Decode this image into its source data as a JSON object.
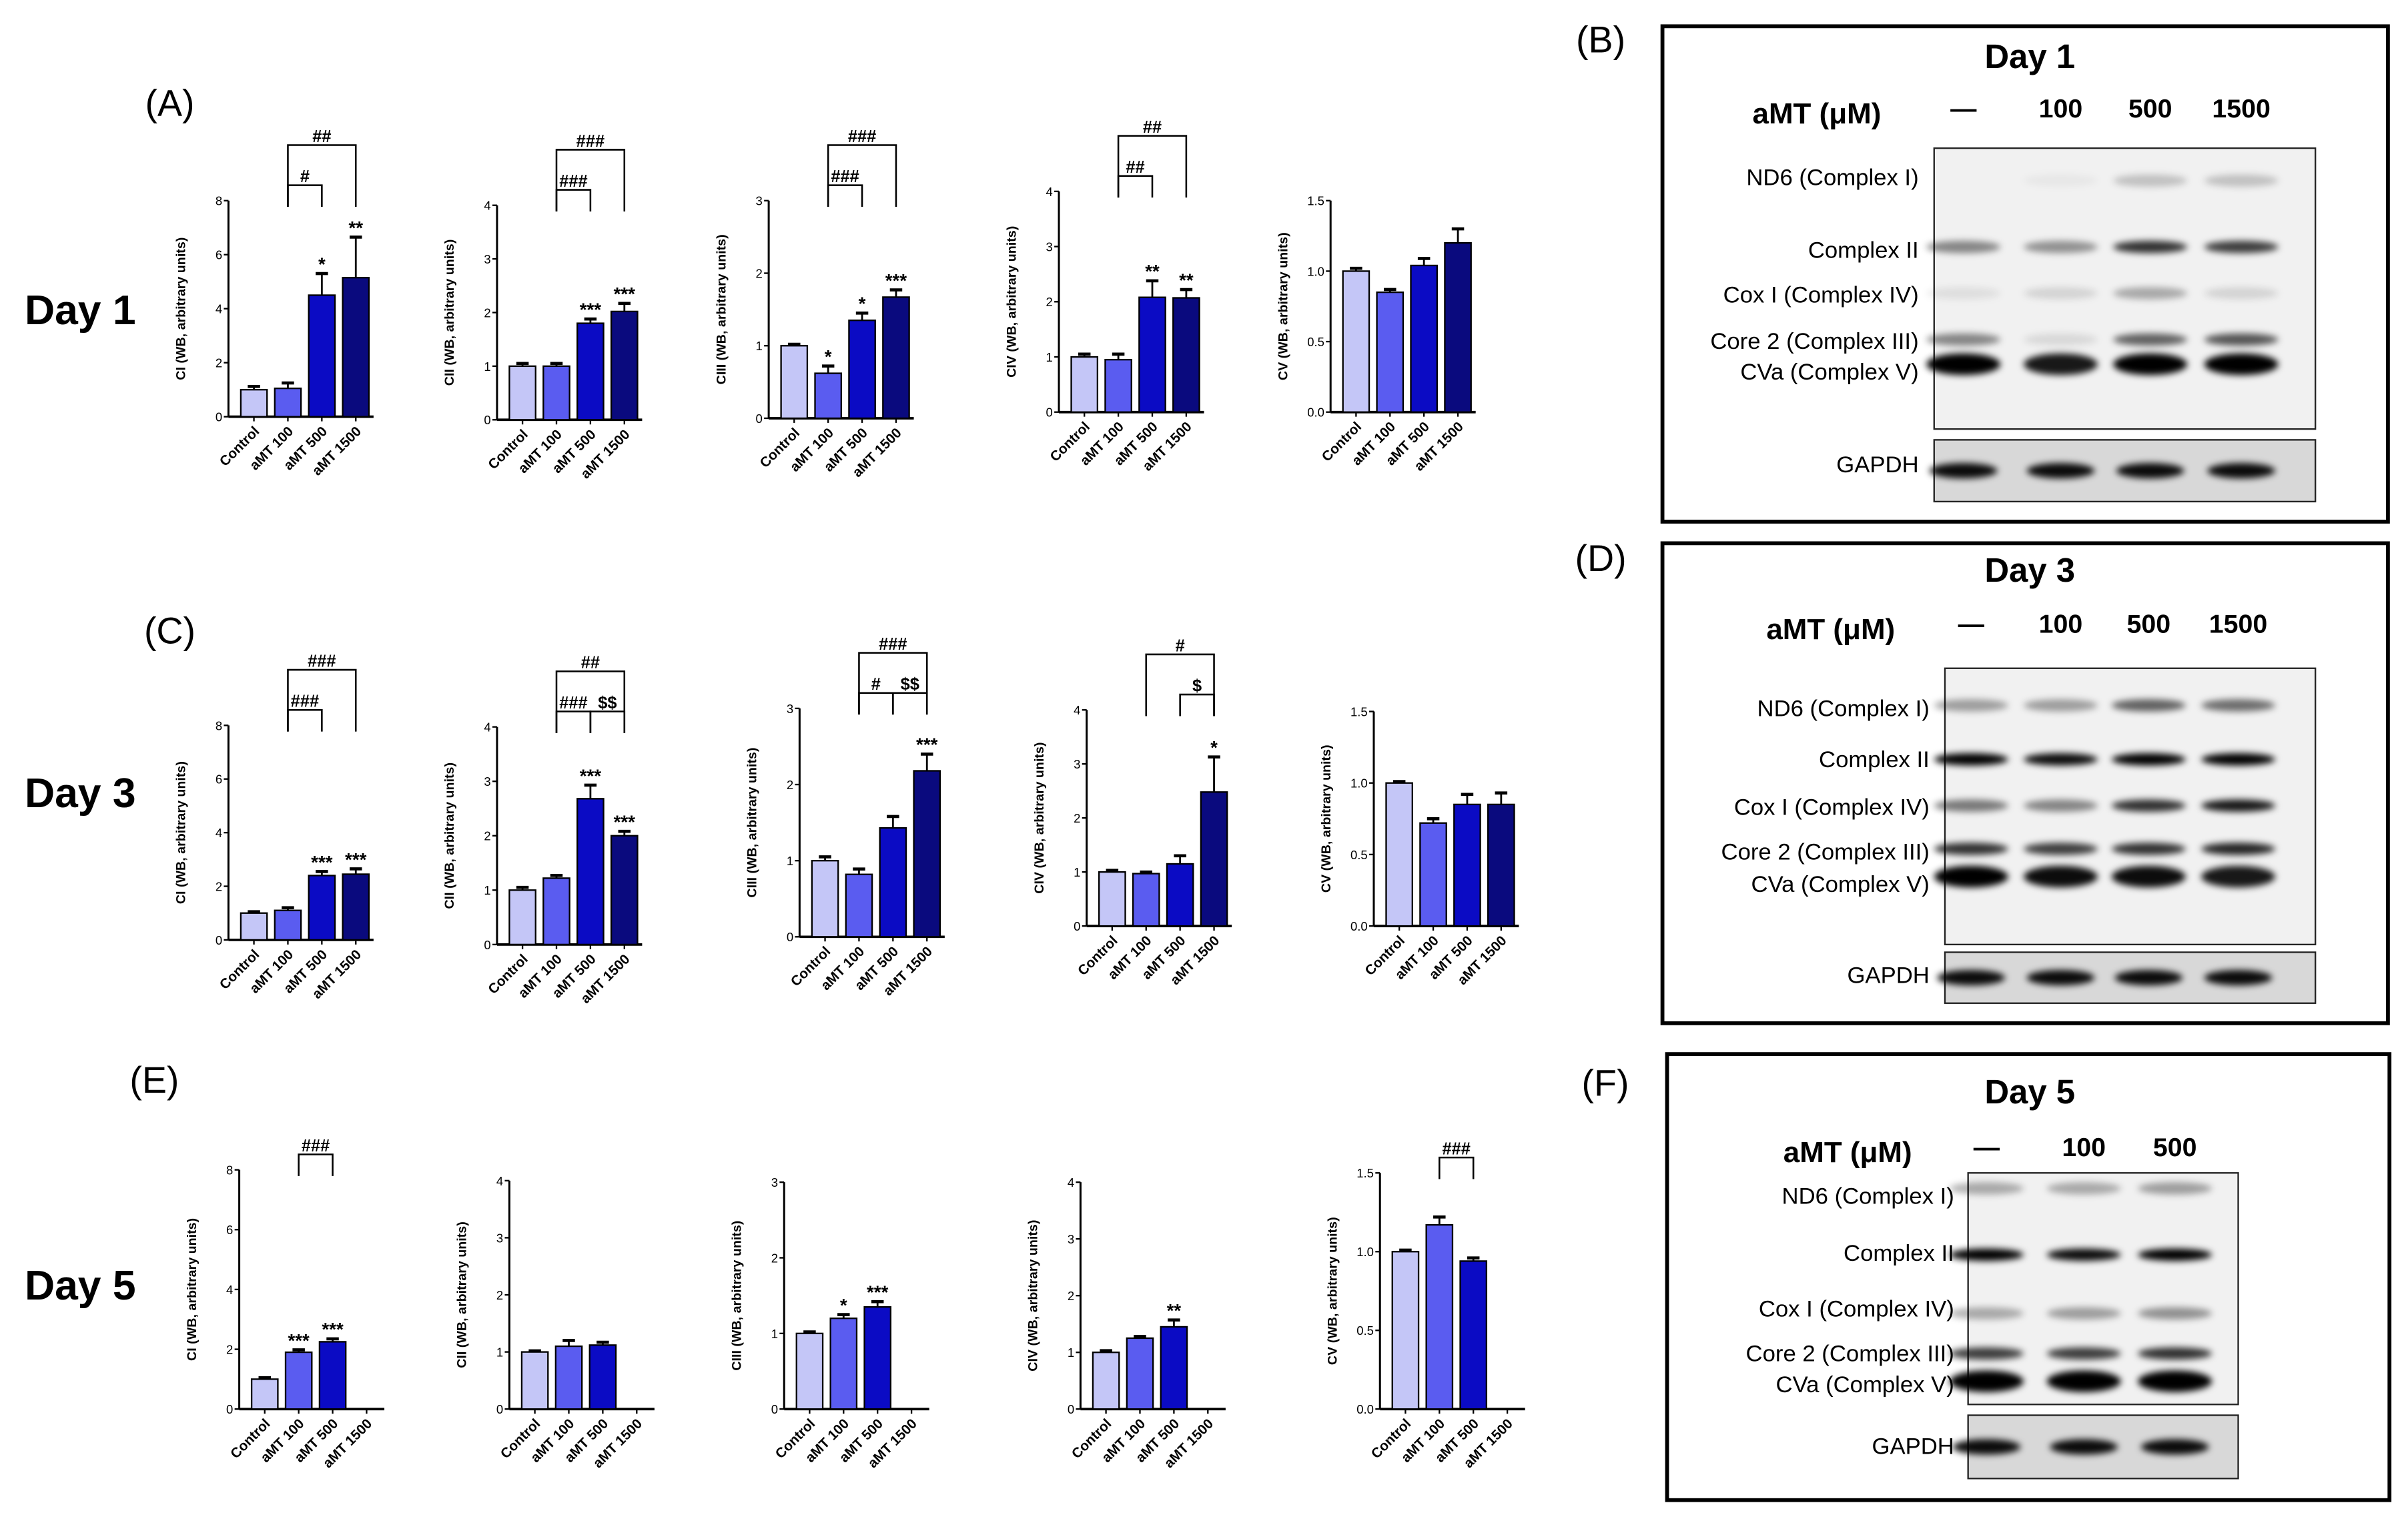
{
  "colors": {
    "control": "#c4c6f7",
    "aMT100": "#5a5cf0",
    "aMT500": "#0b0bc4",
    "aMT1500": "#0a0a7e",
    "axis": "#000000"
  },
  "panel_letters": [
    "(A)",
    "(B)",
    "(C)",
    "(D)",
    "(E)",
    "(F)"
  ],
  "row_labels": [
    "Day 1",
    "Day 3",
    "Day 5"
  ],
  "chart_data": [
    {
      "type": "bar",
      "row": "Day 1",
      "panel": "(A)",
      "ylabel": "CI (WB, arbitrary units)",
      "ylim": [
        0,
        8
      ],
      "yticks": [
        "0",
        "2",
        "4",
        "6",
        "8"
      ],
      "categories": [
        "Control",
        "aMT 100",
        "aMT 500",
        "aMT 1500"
      ],
      "values": [
        1.0,
        1.05,
        4.5,
        5.15
      ],
      "errors": [
        0.12,
        0.2,
        0.8,
        1.5
      ],
      "significance": [
        "",
        "",
        "*",
        "**"
      ],
      "brackets": [
        {
          "from": 1,
          "to": 2,
          "label": "#"
        },
        {
          "from": 1,
          "to": 3,
          "label": "##"
        }
      ]
    },
    {
      "type": "bar",
      "row": "Day 1",
      "panel": "(A)",
      "ylabel": "CII (WB, arbitrary units)",
      "ylim": [
        0,
        4
      ],
      "yticks": [
        "0",
        "1",
        "2",
        "3",
        "4"
      ],
      "categories": [
        "Control",
        "aMT 100",
        "aMT 500",
        "aMT 1500"
      ],
      "values": [
        1.0,
        1.0,
        1.8,
        2.02
      ],
      "errors": [
        0.05,
        0.05,
        0.08,
        0.15
      ],
      "significance": [
        "",
        "",
        "***",
        "***"
      ],
      "brackets": [
        {
          "from": 1,
          "to": 2,
          "label": "###"
        },
        {
          "from": 1,
          "to": 3,
          "label": "###"
        }
      ]
    },
    {
      "type": "bar",
      "row": "Day 1",
      "panel": "(A)",
      "ylabel": "CIII (WB, arbitrary units)",
      "ylim": [
        0,
        3
      ],
      "yticks": [
        "0",
        "1",
        "2",
        "3"
      ],
      "categories": [
        "Control",
        "aMT 100",
        "aMT 500",
        "aMT 1500"
      ],
      "values": [
        1.0,
        0.62,
        1.35,
        1.67
      ],
      "errors": [
        0.02,
        0.1,
        0.1,
        0.1
      ],
      "significance": [
        "",
        "*",
        "*",
        "***"
      ],
      "brackets": [
        {
          "from": 1,
          "to": 2,
          "label": "###"
        },
        {
          "from": 1,
          "to": 3,
          "label": "###"
        }
      ]
    },
    {
      "type": "bar",
      "row": "Day 1",
      "panel": "(A)",
      "ylabel": "CIV (WB, arbitrary units)",
      "ylim": [
        0,
        4
      ],
      "yticks": [
        "0",
        "1",
        "2",
        "3",
        "4"
      ],
      "categories": [
        "Control",
        "aMT 100",
        "aMT 500",
        "aMT 1500"
      ],
      "values": [
        1.0,
        0.95,
        2.08,
        2.07
      ],
      "errors": [
        0.05,
        0.1,
        0.3,
        0.15
      ],
      "significance": [
        "",
        "",
        "**",
        "**"
      ],
      "brackets": [
        {
          "from": 1,
          "to": 2,
          "label": "##"
        },
        {
          "from": 1,
          "to": 3,
          "label": "##"
        }
      ]
    },
    {
      "type": "bar",
      "row": "Day 1",
      "panel": "(A)",
      "ylabel": "CV (WB, arbitrary units)",
      "ylim": [
        0,
        1.5
      ],
      "yticks": [
        "0.0",
        "0.5",
        "1.0",
        "1.5"
      ],
      "categories": [
        "Control",
        "aMT 100",
        "aMT 500",
        "aMT 1500"
      ],
      "values": [
        1.0,
        0.85,
        1.04,
        1.2
      ],
      "errors": [
        0.02,
        0.02,
        0.05,
        0.1
      ],
      "significance": [
        "",
        "",
        "",
        ""
      ],
      "brackets": []
    },
    {
      "type": "bar",
      "row": "Day 3",
      "panel": "(C)",
      "ylabel": "CI (WB, arbitrary units)",
      "ylim": [
        0,
        8
      ],
      "yticks": [
        "0",
        "2",
        "4",
        "6",
        "8"
      ],
      "categories": [
        "Control",
        "aMT 100",
        "aMT 500",
        "aMT 1500"
      ],
      "values": [
        1.0,
        1.1,
        2.4,
        2.45
      ],
      "errors": [
        0.05,
        0.1,
        0.15,
        0.2
      ],
      "significance": [
        "",
        "",
        "***",
        "***"
      ],
      "brackets": [
        {
          "from": 1,
          "to": 2,
          "label": "###"
        },
        {
          "from": 1,
          "to": 3,
          "label": "###"
        }
      ]
    },
    {
      "type": "bar",
      "row": "Day 3",
      "panel": "(C)",
      "ylabel": "CII (WB, arbitrary units)",
      "ylim": [
        0,
        4
      ],
      "yticks": [
        "0",
        "1",
        "2",
        "3",
        "4"
      ],
      "categories": [
        "Control",
        "aMT 100",
        "aMT 500",
        "aMT 1500"
      ],
      "values": [
        1.0,
        1.22,
        2.68,
        2.0
      ],
      "errors": [
        0.05,
        0.05,
        0.25,
        0.08
      ],
      "significance": [
        "",
        "",
        "***",
        "***"
      ],
      "brackets": [
        {
          "from": 1,
          "to": 2,
          "label": "###"
        },
        {
          "from": 2,
          "to": 3,
          "label": "$$"
        },
        {
          "from": 1,
          "to": 3,
          "label": "##"
        }
      ]
    },
    {
      "type": "bar",
      "row": "Day 3",
      "panel": "(C)",
      "ylabel": "CIII (WB, arbitrary units)",
      "ylim": [
        0,
        3
      ],
      "yticks": [
        "0",
        "1",
        "2",
        "3"
      ],
      "categories": [
        "Control",
        "aMT 100",
        "aMT 500",
        "aMT 1500"
      ],
      "values": [
        1.0,
        0.82,
        1.43,
        2.18
      ],
      "errors": [
        0.05,
        0.07,
        0.15,
        0.22
      ],
      "significance": [
        "",
        "",
        "",
        "***"
      ],
      "brackets": [
        {
          "from": 1,
          "to": 2,
          "label": "#"
        },
        {
          "from": 2,
          "to": 3,
          "label": "$$"
        },
        {
          "from": 1,
          "to": 3,
          "label": "###"
        }
      ]
    },
    {
      "type": "bar",
      "row": "Day 3",
      "panel": "(C)",
      "ylabel": "CIV (WB, arbitrary units)",
      "ylim": [
        0,
        4
      ],
      "yticks": [
        "0",
        "1",
        "2",
        "3",
        "4"
      ],
      "categories": [
        "Control",
        "aMT 100",
        "aMT 500",
        "aMT 1500"
      ],
      "values": [
        1.0,
        0.97,
        1.15,
        2.48
      ],
      "errors": [
        0.03,
        0.03,
        0.15,
        0.65
      ],
      "significance": [
        "",
        "",
        "",
        "*"
      ],
      "brackets": [
        {
          "from": 2,
          "to": 3,
          "label": "$"
        },
        {
          "from": 1,
          "to": 3,
          "label": "#"
        }
      ]
    },
    {
      "type": "bar",
      "row": "Day 3",
      "panel": "(C)",
      "ylabel": "CV (WB, arbitrary units)",
      "ylim": [
        0,
        1.5
      ],
      "yticks": [
        "0.0",
        "0.5",
        "1.0",
        "1.5"
      ],
      "categories": [
        "Control",
        "aMT 100",
        "aMT 500",
        "aMT 1500"
      ],
      "values": [
        1.0,
        0.72,
        0.85,
        0.85
      ],
      "errors": [
        0.01,
        0.03,
        0.07,
        0.08
      ],
      "significance": [
        "",
        "",
        "",
        ""
      ],
      "brackets": []
    },
    {
      "type": "bar",
      "row": "Day 5",
      "panel": "(E)",
      "ylabel": "CI (WB, arbitrary units)",
      "ylim": [
        0,
        8
      ],
      "yticks": [
        "0",
        "2",
        "4",
        "6",
        "8"
      ],
      "categories": [
        "Control",
        "aMT 100",
        "aMT 500",
        "aMT 1500"
      ],
      "values": [
        1.0,
        1.9,
        2.25,
        null
      ],
      "errors": [
        0.05,
        0.08,
        0.1,
        null
      ],
      "significance": [
        "",
        "***",
        "***",
        ""
      ],
      "brackets": [
        {
          "from": 1,
          "to": 2,
          "label": "###"
        }
      ]
    },
    {
      "type": "bar",
      "row": "Day 5",
      "panel": "(E)",
      "ylabel": "CII (WB, arbitrary units)",
      "ylim": [
        0,
        4
      ],
      "yticks": [
        "0",
        "1",
        "2",
        "3",
        "4"
      ],
      "categories": [
        "Control",
        "aMT 100",
        "aMT 500",
        "aMT 1500"
      ],
      "values": [
        1.0,
        1.1,
        1.12,
        null
      ],
      "errors": [
        0.02,
        0.1,
        0.05,
        null
      ],
      "significance": [
        "",
        "",
        "",
        ""
      ],
      "brackets": []
    },
    {
      "type": "bar",
      "row": "Day 5",
      "panel": "(E)",
      "ylabel": "CIII (WB, arbitrary units)",
      "ylim": [
        0,
        3
      ],
      "yticks": [
        "0",
        "1",
        "2",
        "3"
      ],
      "categories": [
        "Control",
        "aMT 100",
        "aMT 500",
        "aMT 1500"
      ],
      "values": [
        1.0,
        1.2,
        1.35,
        null
      ],
      "errors": [
        0.02,
        0.05,
        0.07,
        null
      ],
      "significance": [
        "",
        "*",
        "***",
        ""
      ],
      "brackets": []
    },
    {
      "type": "bar",
      "row": "Day 5",
      "panel": "(E)",
      "ylabel": "CIV (WB, arbitrary units)",
      "ylim": [
        0,
        4
      ],
      "yticks": [
        "0",
        "1",
        "2",
        "3",
        "4"
      ],
      "categories": [
        "Control",
        "aMT 100",
        "aMT 500",
        "aMT 1500"
      ],
      "values": [
        1.0,
        1.25,
        1.45,
        null
      ],
      "errors": [
        0.03,
        0.03,
        0.12,
        null
      ],
      "significance": [
        "",
        "",
        "**",
        ""
      ],
      "brackets": []
    },
    {
      "type": "bar",
      "row": "Day 5",
      "panel": "(E)",
      "ylabel": "CV (WB, arbitrary units)",
      "ylim": [
        0,
        1.5
      ],
      "yticks": [
        "0.0",
        "0.5",
        "1.0",
        "1.5"
      ],
      "categories": [
        "Control",
        "aMT 100",
        "aMT 500",
        "aMT 1500"
      ],
      "values": [
        1.0,
        1.17,
        0.94,
        null
      ],
      "errors": [
        0.01,
        0.05,
        0.02,
        null
      ],
      "significance": [
        "",
        "",
        "",
        ""
      ],
      "brackets": [
        {
          "from": 1,
          "to": 2,
          "label": "###"
        }
      ]
    }
  ],
  "blots": [
    {
      "title": "Day 1",
      "dose_label": "aMT (μM)",
      "lanes": [
        "—",
        "100",
        "500",
        "1500"
      ],
      "bands": [
        "ND6 (Complex I)",
        "Complex II",
        "Cox I (Complex IV)",
        "Core 2 (Complex III)",
        "CVa (Complex V)"
      ],
      "loading": "GAPDH"
    },
    {
      "title": "Day 3",
      "dose_label": "aMT (μM)",
      "lanes": [
        "—",
        "100",
        "500",
        "1500"
      ],
      "bands": [
        "ND6 (Complex I)",
        "Complex II",
        "Cox I (Complex IV)",
        "Core 2 (Complex III)",
        "CVa (Complex V)"
      ],
      "loading": "GAPDH"
    },
    {
      "title": "Day 5",
      "dose_label": "aMT (μM)",
      "lanes": [
        "—",
        "100",
        "500"
      ],
      "bands": [
        "ND6 (Complex I)",
        "Complex II",
        "Cox I (Complex IV)",
        "Core 2 (Complex III)",
        "CVa (Complex V)"
      ],
      "loading": "GAPDH"
    }
  ]
}
